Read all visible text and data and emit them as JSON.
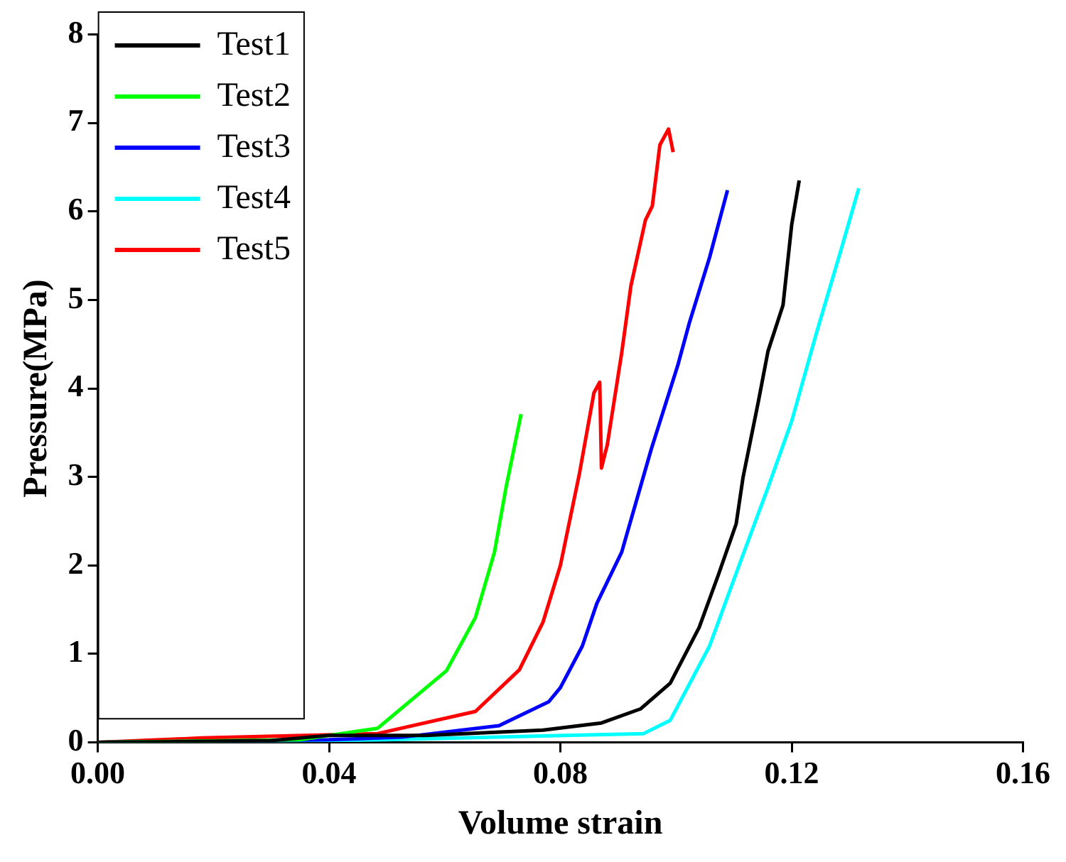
{
  "chart_data": {
    "type": "line",
    "xlabel": "Volume strain",
    "ylabel": "Pressure(MPa)",
    "xlim": [
      0,
      0.16
    ],
    "xticks": [
      {
        "value": 0,
        "label": "0.00"
      },
      {
        "value": 0.04,
        "label": "0.04"
      },
      {
        "value": 0.08,
        "label": "0.08"
      },
      {
        "value": 0.12,
        "label": "0.12"
      },
      {
        "value": 0.16,
        "label": "0.16"
      }
    ],
    "ylim": [
      0,
      8
    ],
    "yticks": [
      0,
      1,
      2,
      3,
      4,
      5,
      6,
      7,
      8
    ],
    "grid": false,
    "legend": "top left",
    "marker": "none",
    "line_style": "solid",
    "series": [
      {
        "name": "Test1",
        "color": "#000000",
        "x": [
          0,
          0.03,
          0.04,
          0.0567,
          0.077,
          0.0871,
          0.0939,
          0.099,
          0.104,
          0.1073,
          0.1104,
          0.1116,
          0.1142,
          0.1159,
          0.1185,
          0.12,
          0.1213
        ],
        "values": [
          0,
          0.02,
          0.08,
          0.08,
          0.14,
          0.22,
          0.38,
          0.67,
          1.3,
          1.89,
          2.47,
          3.0,
          3.84,
          4.42,
          4.94,
          5.85,
          6.35
        ]
      },
      {
        "name": "Test2",
        "color": "#00ff00",
        "x": [
          0,
          0.035,
          0.0484,
          0.0603,
          0.0653,
          0.0686,
          0.0706,
          0.0732
        ],
        "values": [
          0,
          0.03,
          0.16,
          0.81,
          1.41,
          2.15,
          2.88,
          3.71
        ]
      },
      {
        "name": "Test3",
        "color": "#0000ff",
        "x": [
          0,
          0.04,
          0.0527,
          0.0694,
          0.078,
          0.08,
          0.0838,
          0.0863,
          0.0906,
          0.0957,
          0.1003,
          0.1023,
          0.1058,
          0.1089
        ],
        "values": [
          0,
          0.03,
          0.06,
          0.19,
          0.46,
          0.62,
          1.09,
          1.57,
          2.15,
          3.31,
          4.26,
          4.74,
          5.48,
          6.24
        ]
      },
      {
        "name": "Test4",
        "color": "#00ffff",
        "x": [
          0,
          0.05,
          0.0944,
          0.099,
          0.1058,
          0.1109,
          0.1159,
          0.12,
          0.1243,
          0.1286,
          0.1316
        ],
        "values": [
          0,
          0.03,
          0.1,
          0.25,
          1.09,
          2.0,
          2.88,
          3.63,
          4.63,
          5.58,
          6.26
        ]
      },
      {
        "name": "Test5",
        "color": "#ff0000",
        "x": [
          0,
          0.018,
          0.0484,
          0.0653,
          0.0729,
          0.077,
          0.08,
          0.0833,
          0.0858,
          0.0868,
          0.0871,
          0.0881,
          0.0906,
          0.0922,
          0.0947,
          0.0959,
          0.0972,
          0.0987,
          0.0995
        ],
        "values": [
          0,
          0.05,
          0.1,
          0.35,
          0.82,
          1.36,
          2.0,
          3.04,
          3.95,
          4.07,
          3.1,
          3.36,
          4.4,
          5.16,
          5.9,
          6.06,
          6.75,
          6.93,
          6.67
        ]
      }
    ]
  }
}
